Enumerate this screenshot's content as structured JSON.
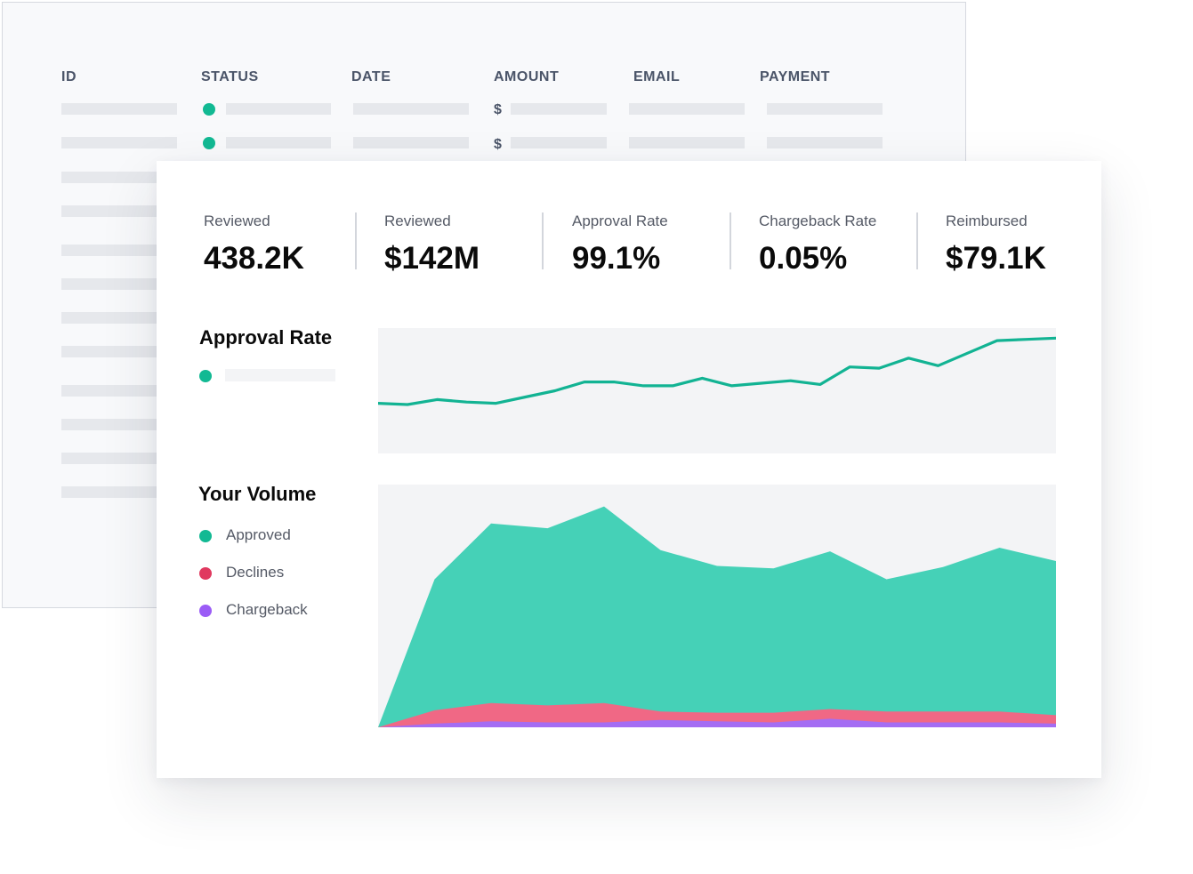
{
  "table": {
    "columns": [
      "ID",
      "STATUS",
      "DATE",
      "AMOUNT",
      "EMAIL",
      "PAYMENT"
    ],
    "currency_symbol": "$",
    "status_color": "#12b993"
  },
  "stats": [
    {
      "label": "Reviewed",
      "value": "438.2K"
    },
    {
      "label": "Reviewed",
      "value": "$142M"
    },
    {
      "label": "Approval Rate",
      "value": "99.1%"
    },
    {
      "label": "Chargeback Rate",
      "value": "0.05%"
    },
    {
      "label": "Reimbursed",
      "value": "$79.1K"
    }
  ],
  "approval_section": {
    "title": "Approval Rate",
    "legend_color": "#12b993"
  },
  "volume_section": {
    "title": "Your Volume",
    "legend": [
      {
        "label": "Approved",
        "color": "#12b993"
      },
      {
        "label": "Declines",
        "color": "#e0395f"
      },
      {
        "label": "Chargeback",
        "color": "#9b5cf6"
      }
    ]
  },
  "chart_data": [
    {
      "type": "line",
      "title": "Approval Rate",
      "x": [
        1,
        2,
        3,
        4,
        5,
        6,
        7,
        8,
        9,
        10,
        11,
        12,
        13,
        14,
        15,
        16,
        17,
        18,
        19,
        20,
        21,
        22,
        23,
        24
      ],
      "series": [
        {
          "values": [
            40,
            39,
            43,
            41,
            40,
            45,
            50,
            57,
            57,
            54,
            54,
            60,
            54,
            56,
            58,
            55,
            69,
            68,
            76,
            70,
            80,
            90,
            91,
            92
          ],
          "color": "#12b393"
        }
      ],
      "ylim": [
        0,
        100
      ],
      "grid": false
    },
    {
      "type": "area",
      "title": "Your Volume",
      "x": [
        0,
        1,
        2,
        3,
        4,
        5,
        6,
        7,
        8,
        9,
        10,
        11,
        12
      ],
      "series": [
        {
          "name": "Approved",
          "values": [
            0,
            122,
            168,
            164,
            182,
            146,
            133,
            131,
            145,
            122,
            132,
            148,
            137
          ],
          "color": "#45d1b7"
        },
        {
          "name": "Declines",
          "values": [
            0,
            14,
            20,
            18,
            20,
            13,
            12,
            12,
            15,
            13,
            13,
            13,
            10
          ],
          "color": "#f06885"
        },
        {
          "name": "Chargeback",
          "values": [
            0,
            3,
            5,
            4,
            4,
            6,
            5,
            4,
            7,
            4,
            4,
            4,
            3
          ],
          "color": "#a46df3"
        }
      ],
      "ylim": [
        0,
        200
      ],
      "grid": false
    }
  ]
}
